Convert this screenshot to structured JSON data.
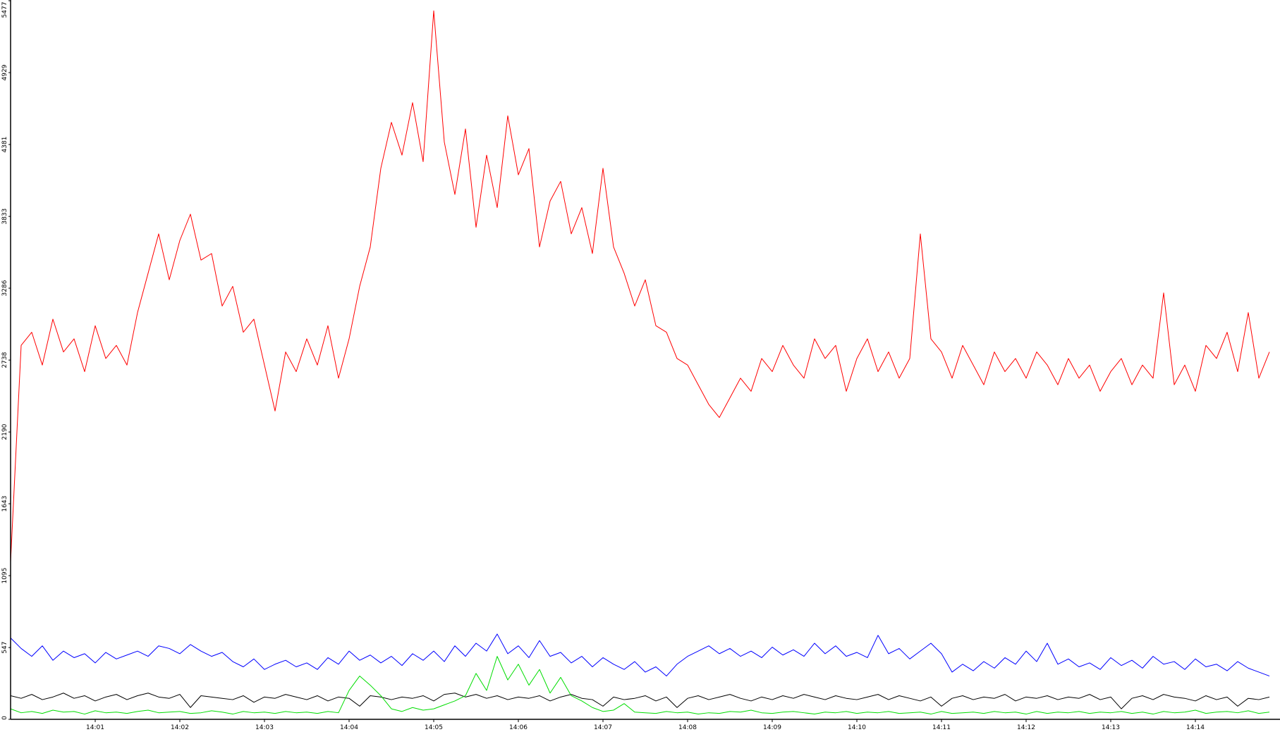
{
  "chart_data": {
    "type": "line",
    "x": [
      840,
      840.125,
      840.25,
      840.375,
      840.5,
      840.625,
      840.75,
      840.875,
      841,
      841.125,
      841.25,
      841.375,
      841.5,
      841.625,
      841.75,
      841.875,
      842,
      842.125,
      842.25,
      842.375,
      842.5,
      842.625,
      842.75,
      842.875,
      843,
      843.125,
      843.25,
      843.375,
      843.5,
      843.625,
      843.75,
      843.875,
      844,
      844.125,
      844.25,
      844.375,
      844.5,
      844.625,
      844.75,
      844.875,
      845,
      845.125,
      845.25,
      845.375,
      845.5,
      845.625,
      845.75,
      845.875,
      846,
      846.125,
      846.25,
      846.375,
      846.5,
      846.625,
      846.75,
      846.875,
      847,
      847.125,
      847.25,
      847.375,
      847.5,
      847.625,
      847.75,
      847.875,
      848,
      848.125,
      848.25,
      848.375,
      848.5,
      848.625,
      848.75,
      848.875,
      849,
      849.125,
      849.25,
      849.375,
      849.5,
      849.625,
      849.75,
      849.875,
      850,
      850.125,
      850.25,
      850.375,
      850.5,
      850.625,
      850.75,
      850.875,
      851,
      851.125,
      851.25,
      851.375,
      851.5,
      851.625,
      851.75,
      851.875,
      852,
      852.125,
      852.25,
      852.375,
      852.5,
      852.625,
      852.75,
      852.875,
      853,
      853.125,
      853.25,
      853.375,
      853.5,
      853.625,
      853.75,
      853.875,
      854,
      854.125,
      854.25,
      854.375,
      854.5,
      854.625,
      854.75,
      854.875
    ],
    "series": [
      {
        "color": "#ff0000",
        "values": [
          1200,
          2850,
          2950,
          2700,
          3050,
          2800,
          2900,
          2650,
          3000,
          2750,
          2850,
          2700,
          3100,
          3400,
          3700,
          3350,
          3650,
          3850,
          3500,
          3550,
          3150,
          3300,
          2950,
          3050,
          2700,
          2350,
          2800,
          2650,
          2900,
          2700,
          3000,
          2600,
          2900,
          3300,
          3600,
          4200,
          4550,
          4300,
          4700,
          4250,
          5400,
          4400,
          4000,
          4500,
          3750,
          4300,
          3900,
          4600,
          4150,
          4350,
          3600,
          3950,
          4100,
          3700,
          3900,
          3550,
          4200,
          3600,
          3400,
          3150,
          3350,
          3000,
          2950,
          2750,
          2700,
          2550,
          2400,
          2300,
          2450,
          2600,
          2500,
          2750,
          2650,
          2850,
          2700,
          2600,
          2900,
          2750,
          2850,
          2500,
          2750,
          2900,
          2650,
          2800,
          2600,
          2750,
          3700,
          2900,
          2800,
          2600,
          2850,
          2700,
          2550,
          2800,
          2650,
          2750,
          2600,
          2800,
          2700,
          2550,
          2750,
          2600,
          2700,
          2500,
          2650,
          2750,
          2550,
          2700,
          2600,
          3250,
          2550,
          2700,
          2500,
          2850,
          2750,
          2950,
          2650,
          3100,
          2600,
          2800
        ]
      },
      {
        "color": "#0000ff",
        "values": [
          620,
          540,
          480,
          560,
          450,
          520,
          470,
          500,
          430,
          510,
          460,
          490,
          520,
          480,
          560,
          540,
          500,
          570,
          520,
          480,
          510,
          440,
          400,
          460,
          380,
          420,
          450,
          400,
          430,
          380,
          470,
          420,
          520,
          450,
          490,
          430,
          480,
          410,
          500,
          450,
          520,
          440,
          560,
          480,
          580,
          520,
          650,
          500,
          560,
          470,
          600,
          480,
          510,
          430,
          480,
          400,
          470,
          420,
          380,
          440,
          360,
          400,
          330,
          420,
          480,
          520,
          560,
          500,
          540,
          480,
          520,
          470,
          550,
          490,
          530,
          480,
          580,
          500,
          560,
          480,
          510,
          470,
          640,
          500,
          540,
          460,
          520,
          580,
          500,
          360,
          420,
          370,
          440,
          390,
          470,
          420,
          520,
          440,
          580,
          420,
          460,
          400,
          430,
          380,
          470,
          410,
          450,
          390,
          480,
          420,
          440,
          380,
          460,
          400,
          420,
          370,
          440,
          390,
          360,
          330
        ]
      },
      {
        "color": "#000000",
        "values": [
          180,
          160,
          190,
          150,
          170,
          200,
          160,
          180,
          140,
          170,
          190,
          150,
          180,
          200,
          170,
          160,
          190,
          90,
          180,
          170,
          160,
          150,
          180,
          130,
          170,
          160,
          190,
          170,
          150,
          180,
          140,
          170,
          160,
          100,
          180,
          170,
          150,
          170,
          160,
          180,
          140,
          190,
          200,
          170,
          190,
          160,
          180,
          150,
          170,
          160,
          180,
          140,
          170,
          190,
          160,
          150,
          100,
          170,
          150,
          160,
          180,
          140,
          170,
          90,
          160,
          180,
          150,
          170,
          190,
          160,
          140,
          170,
          150,
          180,
          160,
          190,
          170,
          150,
          180,
          160,
          150,
          170,
          190,
          150,
          180,
          160,
          140,
          170,
          100,
          160,
          180,
          150,
          170,
          160,
          190,
          140,
          170,
          160,
          180,
          150,
          170,
          160,
          190,
          150,
          170,
          80,
          160,
          180,
          150,
          190,
          170,
          160,
          140,
          180,
          150,
          170,
          100,
          160,
          150,
          170
        ]
      },
      {
        "color": "#00dd00",
        "values": [
          80,
          50,
          60,
          45,
          70,
          55,
          60,
          40,
          65,
          50,
          55,
          45,
          60,
          70,
          50,
          55,
          60,
          45,
          50,
          65,
          55,
          40,
          60,
          50,
          55,
          45,
          60,
          50,
          55,
          45,
          60,
          50,
          220,
          330,
          260,
          180,
          80,
          60,
          90,
          70,
          80,
          110,
          140,
          180,
          350,
          220,
          480,
          300,
          420,
          260,
          380,
          200,
          320,
          180,
          140,
          90,
          60,
          70,
          120,
          55,
          50,
          45,
          60,
          50,
          55,
          40,
          50,
          45,
          60,
          55,
          70,
          50,
          45,
          55,
          60,
          50,
          40,
          55,
          50,
          60,
          45,
          55,
          50,
          60,
          45,
          50,
          55,
          40,
          60,
          45,
          50,
          55,
          45,
          60,
          50,
          55,
          40,
          60,
          45,
          55,
          50,
          60,
          45,
          55,
          50,
          60,
          45,
          55,
          40,
          60,
          50,
          55,
          70,
          45,
          55,
          60,
          50,
          65,
          45,
          55
        ]
      }
    ],
    "xlim": [
      840,
      855
    ],
    "xticks": [
      {
        "value": 841,
        "label": "14:01"
      },
      {
        "value": 842,
        "label": "14:02"
      },
      {
        "value": 843,
        "label": "14:03"
      },
      {
        "value": 844,
        "label": "14:04"
      },
      {
        "value": 845,
        "label": "14:05"
      },
      {
        "value": 846,
        "label": "14:06"
      },
      {
        "value": 847,
        "label": "14:07"
      },
      {
        "value": 848,
        "label": "14:08"
      },
      {
        "value": 849,
        "label": "14:09"
      },
      {
        "value": 850,
        "label": "14:10"
      },
      {
        "value": 851,
        "label": "14:11"
      },
      {
        "value": 852,
        "label": "14:12"
      },
      {
        "value": 853,
        "label": "14:13"
      },
      {
        "value": 854,
        "label": "14:14"
      }
    ],
    "ylim": [
      0,
      5477
    ],
    "yticks": [
      0,
      547,
      1095,
      1643,
      2190,
      2738,
      3286,
      3833,
      4381,
      4929,
      5477
    ],
    "grid": false
  }
}
